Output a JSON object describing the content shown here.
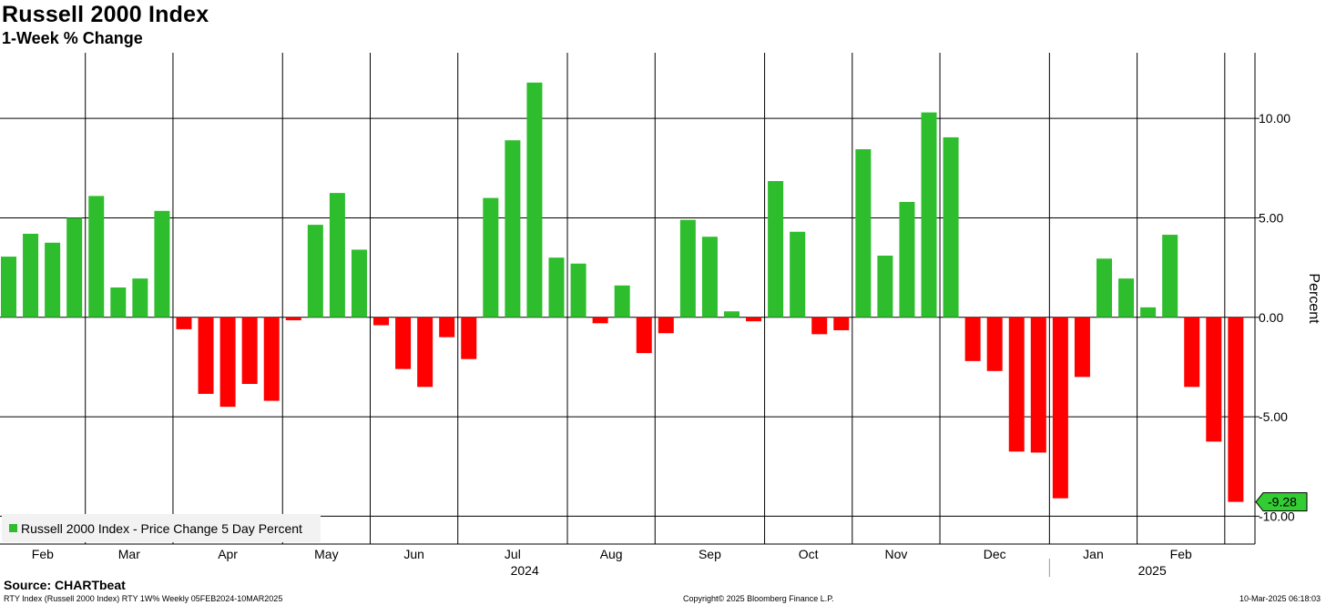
{
  "chart_data": {
    "type": "bar",
    "title": "Russell 2000 Index",
    "subtitle": "1-Week % Change",
    "ylabel": "Percent",
    "ylim": [
      -11.4,
      13.3
    ],
    "y_ticks": [
      10,
      5,
      0,
      -5,
      -10
    ],
    "y_tick_labels": [
      "10.00",
      "5.00",
      "0.00",
      "-5.00",
      "-10.00"
    ],
    "grid": true,
    "legend_position": "bottom-left",
    "colors": {
      "positive": "#2dbd2d",
      "negative": "#ff0000",
      "last_label_bg": "#33cc33"
    },
    "series": [
      {
        "name": "Russell 2000 Index - Price Change 5 Day Percent",
        "dates": [
          "2024-02-05",
          "2024-02-12",
          "2024-02-19",
          "2024-02-26",
          "2024-03-04",
          "2024-03-11",
          "2024-03-18",
          "2024-03-25",
          "2024-04-01",
          "2024-04-08",
          "2024-04-15",
          "2024-04-22",
          "2024-04-29",
          "2024-05-06",
          "2024-05-13",
          "2024-05-20",
          "2024-05-27",
          "2024-06-03",
          "2024-06-10",
          "2024-06-17",
          "2024-06-24",
          "2024-07-01",
          "2024-07-08",
          "2024-07-15",
          "2024-07-22",
          "2024-07-29",
          "2024-08-05",
          "2024-08-12",
          "2024-08-19",
          "2024-08-26",
          "2024-09-02",
          "2024-09-09",
          "2024-09-16",
          "2024-09-23",
          "2024-09-30",
          "2024-10-07",
          "2024-10-14",
          "2024-10-21",
          "2024-10-28",
          "2024-11-04",
          "2024-11-11",
          "2024-11-18",
          "2024-11-25",
          "2024-12-02",
          "2024-12-09",
          "2024-12-16",
          "2024-12-23",
          "2024-12-30",
          "2025-01-06",
          "2025-01-13",
          "2025-01-20",
          "2025-01-27",
          "2025-02-03",
          "2025-02-10",
          "2025-02-17",
          "2025-02-24",
          "2025-03-03"
        ],
        "values": [
          3.05,
          4.2,
          3.75,
          5.0,
          6.1,
          1.5,
          1.95,
          5.35,
          -0.6,
          -3.85,
          -4.5,
          -3.35,
          -4.2,
          -0.15,
          4.65,
          6.25,
          3.4,
          -0.4,
          -2.6,
          -3.5,
          -1.0,
          -2.1,
          6.0,
          8.9,
          11.8,
          3.0,
          2.7,
          -0.3,
          1.6,
          -1.8,
          -0.8,
          4.9,
          4.05,
          0.3,
          -0.2,
          6.85,
          4.3,
          -0.85,
          -0.65,
          8.45,
          3.1,
          5.8,
          10.3,
          9.05,
          -2.2,
          -2.7,
          -6.75,
          -6.8,
          -9.1,
          -3.0,
          2.95,
          1.95,
          0.5,
          4.15,
          -3.5,
          -6.25,
          -9.28
        ]
      }
    ],
    "x_month_labels": [
      "Feb",
      "Mar",
      "Apr",
      "May",
      "Jun",
      "Jul",
      "Aug",
      "Sep",
      "Oct",
      "Nov",
      "Dec",
      "Jan",
      "Feb"
    ],
    "x_year_labels": [
      "2024",
      "2025"
    ],
    "last_value_label": "-9.28"
  },
  "source": "Source: CHARTbeat",
  "footer": {
    "left": "RTY Index (Russell 2000 Index) RTY 1W% Weekly 05FEB2024-10MAR2025",
    "center": "Copyright© 2025 Bloomberg Finance L.P.",
    "right": "10-Mar-2025 06:18:03"
  }
}
